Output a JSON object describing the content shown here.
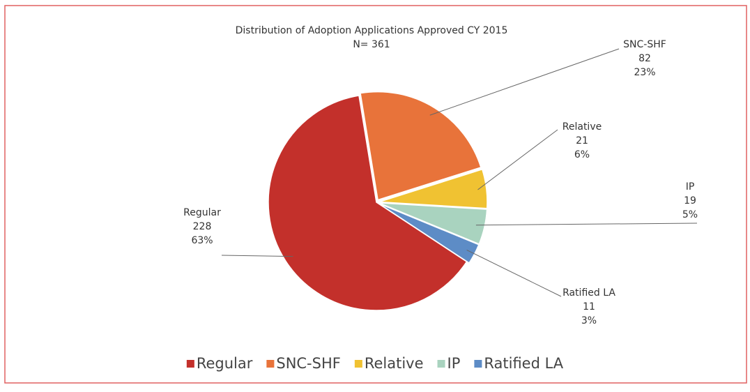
{
  "chart_data": {
    "type": "pie",
    "title": "Distribution of Adoption Applications Approved CY 2015",
    "subtitle": "N= 361",
    "categories": [
      "Regular",
      "SNC-SHF",
      "Relative",
      "IP",
      "Ratified LA"
    ],
    "values": [
      228,
      82,
      21,
      19,
      11
    ],
    "percent_labels": [
      "63%",
      "23%",
      "6%",
      "5%",
      "3%"
    ],
    "colors": [
      "#c3302b",
      "#e8733a",
      "#f0c232",
      "#a9d3bf",
      "#5d8cc6"
    ],
    "legend": "bottom"
  }
}
